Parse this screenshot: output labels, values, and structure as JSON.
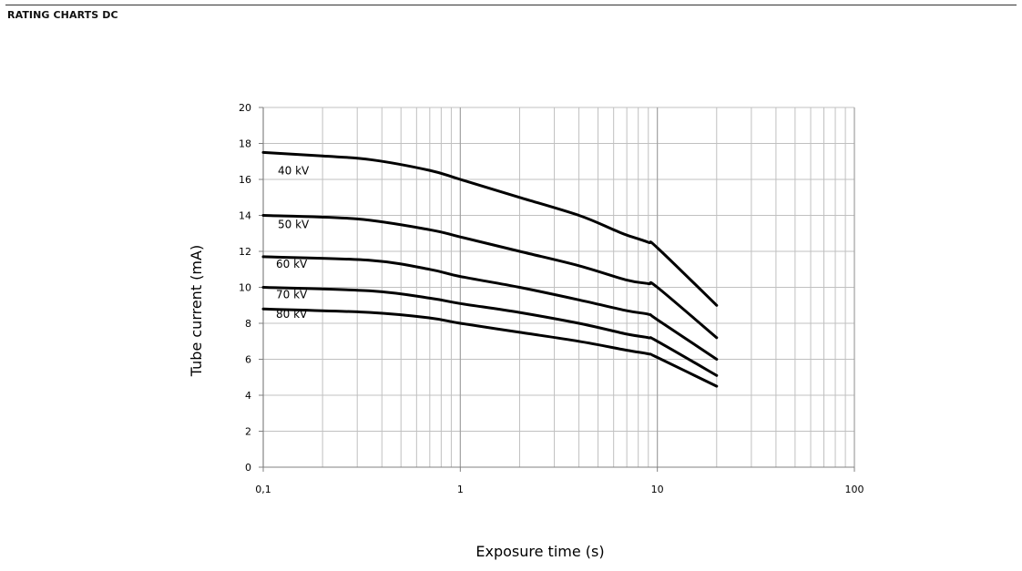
{
  "page": {
    "heading": "RATING CHARTS DC"
  },
  "chart_data": {
    "type": "line",
    "title": "",
    "xlabel": "Exposure time (s)",
    "ylabel": "Tube current (mA)",
    "x_scale": "log",
    "xlim": [
      0.1,
      100
    ],
    "ylim": [
      0,
      20
    ],
    "x_ticks": [
      0.1,
      1,
      10,
      100
    ],
    "x_tick_labels": [
      "0,1",
      "1",
      "10",
      "100"
    ],
    "y_ticks": [
      0,
      2,
      4,
      6,
      8,
      10,
      12,
      14,
      16,
      18,
      20
    ],
    "y_tick_labels": [
      "0",
      "2",
      "4",
      "6",
      "8",
      "10",
      "12",
      "14",
      "16",
      "18",
      "20"
    ],
    "grid": true,
    "legend": "none",
    "series": [
      {
        "name": "40 kV",
        "x": [
          0.1,
          0.2,
          0.35,
          0.7,
          1,
          2,
          4,
          6,
          7,
          9,
          10,
          20
        ],
        "y": [
          17.5,
          17.3,
          17.1,
          16.5,
          16.0,
          15.0,
          14.0,
          13.2,
          12.9,
          12.5,
          12.2,
          9.0
        ]
      },
      {
        "name": "50 kV",
        "x": [
          0.1,
          0.3,
          0.7,
          1,
          2,
          4,
          7,
          9,
          10,
          20
        ],
        "y": [
          14.0,
          13.8,
          13.2,
          12.8,
          12.0,
          11.2,
          10.4,
          10.2,
          10.0,
          7.2
        ]
      },
      {
        "name": "60 kV",
        "x": [
          0.1,
          0.35,
          0.7,
          1,
          2,
          4,
          7,
          9,
          10,
          20
        ],
        "y": [
          11.7,
          11.5,
          11.0,
          10.6,
          10.0,
          9.3,
          8.7,
          8.5,
          8.2,
          6.0
        ]
      },
      {
        "name": "70 kV",
        "x": [
          0.1,
          0.35,
          0.7,
          1,
          2,
          4,
          7,
          9,
          10,
          20
        ],
        "y": [
          10.0,
          9.8,
          9.4,
          9.1,
          8.6,
          8.0,
          7.4,
          7.2,
          7.0,
          5.1
        ]
      },
      {
        "name": "80 kV",
        "x": [
          0.1,
          0.35,
          0.7,
          1,
          2,
          4,
          7,
          9,
          10,
          20
        ],
        "y": [
          8.8,
          8.6,
          8.3,
          8.0,
          7.5,
          7.0,
          6.5,
          6.3,
          6.1,
          4.5
        ]
      }
    ],
    "colors": {
      "line": "#000000",
      "grid": "#c0c0c0",
      "axis": "#808080"
    }
  }
}
